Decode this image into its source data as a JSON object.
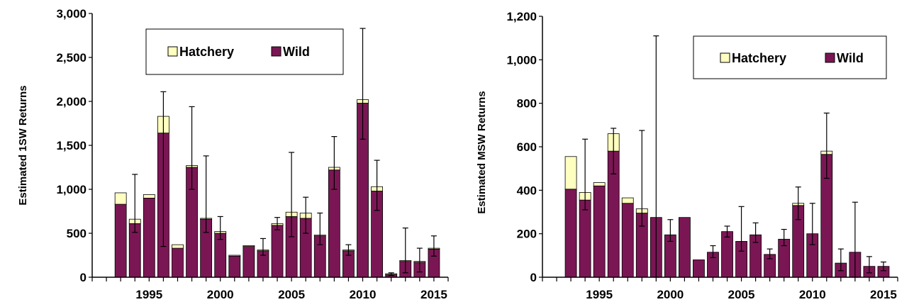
{
  "colors": {
    "wild": "#7b1654",
    "hatchery": "#ffffc0",
    "stroke": "#000000"
  },
  "chart_data": [
    {
      "type": "bar",
      "stacked": true,
      "ylabel": "Estimated 1SW Returns",
      "ylim": [
        0,
        3000
      ],
      "yticks": [
        0,
        500,
        1000,
        1500,
        2000,
        2500,
        3000
      ],
      "ytick_labels": [
        "0",
        "500",
        "1,000",
        "1,500",
        "2,000",
        "2,500",
        "3,000"
      ],
      "xlim": [
        1991,
        2016
      ],
      "xticks": [
        1995,
        2000,
        2005,
        2010,
        2015
      ],
      "xtick_labels": [
        "1995",
        "2000",
        "2005",
        "2010",
        "2015"
      ],
      "legend": {
        "placement": "top",
        "entries": [
          "Hatchery",
          "Wild"
        ]
      },
      "x": [
        1993,
        1994,
        1995,
        1996,
        1997,
        1998,
        1999,
        2000,
        2001,
        2002,
        2003,
        2004,
        2005,
        2006,
        2007,
        2008,
        2009,
        2010,
        2011,
        2012,
        2013,
        2014,
        2015
      ],
      "series": [
        {
          "name": "Wild",
          "values": [
            830,
            610,
            900,
            1640,
            330,
            1250,
            660,
            500,
            240,
            350,
            300,
            590,
            690,
            670,
            470,
            1220,
            300,
            1980,
            980,
            30,
            180,
            170,
            320
          ]
        },
        {
          "name": "Hatchery",
          "values": [
            130,
            50,
            40,
            190,
            40,
            20,
            10,
            20,
            10,
            10,
            10,
            20,
            50,
            60,
            10,
            30,
            10,
            40,
            50,
            10,
            10,
            10,
            10
          ]
        }
      ],
      "error_upper": [
        null,
        1170,
        null,
        2110,
        null,
        1940,
        1380,
        690,
        null,
        null,
        440,
        680,
        1420,
        910,
        730,
        1600,
        370,
        2830,
        1330,
        50,
        560,
        330,
        470
      ],
      "error_lower": [
        null,
        510,
        null,
        350,
        null,
        1000,
        510,
        430,
        null,
        null,
        250,
        540,
        460,
        500,
        370,
        1000,
        250,
        1570,
        760,
        20,
        50,
        60,
        240
      ]
    },
    {
      "type": "bar",
      "stacked": true,
      "ylabel": "Estimated MSW Returns",
      "ylim": [
        0,
        1200
      ],
      "yticks": [
        0,
        200,
        400,
        600,
        800,
        1000,
        1200
      ],
      "ytick_labels": [
        "0",
        "200",
        "400",
        "600",
        "800",
        "1,000",
        "1,200"
      ],
      "xlim": [
        1991,
        2016
      ],
      "xticks": [
        1995,
        2000,
        2005,
        2010,
        2015
      ],
      "xtick_labels": [
        "1995",
        "2000",
        "2005",
        "2010",
        "2015"
      ],
      "legend": {
        "placement": "top-right",
        "entries": [
          "Hatchery",
          "Wild"
        ]
      },
      "x": [
        1993,
        1994,
        1995,
        1996,
        1997,
        1998,
        1999,
        2000,
        2001,
        2002,
        2003,
        2004,
        2005,
        2006,
        2007,
        2008,
        2009,
        2010,
        2011,
        2012,
        2013,
        2014,
        2015
      ],
      "series": [
        {
          "name": "Wild",
          "values": [
            405,
            355,
            420,
            580,
            340,
            295,
            275,
            195,
            275,
            80,
            115,
            210,
            165,
            195,
            105,
            175,
            330,
            200,
            565,
            65,
            115,
            50,
            50
          ]
        },
        {
          "name": "Hatchery",
          "values": [
            150,
            35,
            15,
            80,
            25,
            20,
            0,
            0,
            0,
            0,
            0,
            0,
            0,
            0,
            0,
            0,
            10,
            0,
            15,
            0,
            0,
            0,
            0
          ]
        }
      ],
      "error_upper": [
        null,
        635,
        null,
        685,
        null,
        675,
        1110,
        265,
        null,
        null,
        145,
        235,
        325,
        250,
        130,
        220,
        415,
        340,
        755,
        130,
        345,
        95,
        70
      ],
      "error_lower": [
        null,
        310,
        null,
        475,
        null,
        235,
        0,
        165,
        null,
        null,
        90,
        185,
        120,
        160,
        85,
        145,
        265,
        150,
        455,
        30,
        0,
        20,
        30
      ]
    }
  ]
}
